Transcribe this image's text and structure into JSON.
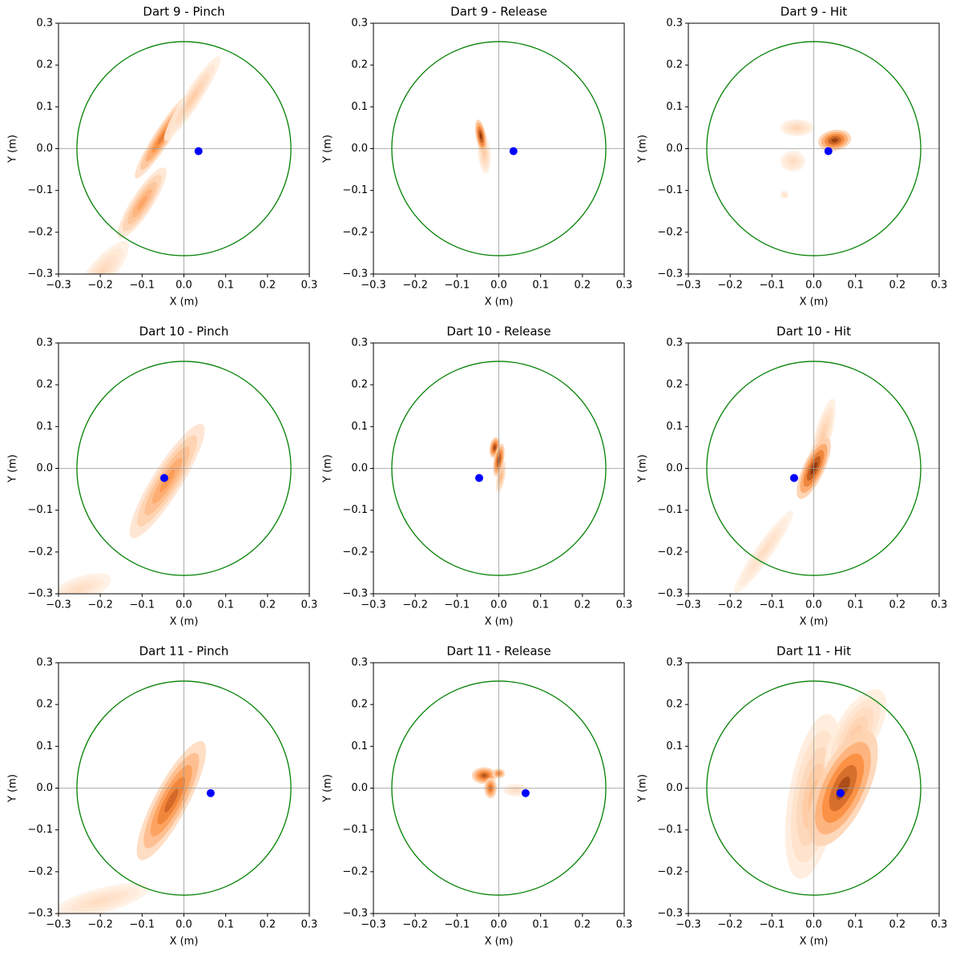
{
  "chart_data": [
    {
      "type": "kde",
      "title": "Dart 9 - Pinch",
      "xlabel": "X (m)",
      "ylabel": "Y (m)",
      "xlim": [
        -0.3,
        0.3
      ],
      "ylim": [
        -0.3,
        0.3
      ],
      "xticks": [
        {
          "value": -0.3,
          "label": "−0.3"
        },
        {
          "value": -0.2,
          "label": "−0.2"
        },
        {
          "value": -0.1,
          "label": "−0.1"
        },
        {
          "value": 0,
          "label": "0.0"
        },
        0.1,
        0.2,
        0.3
      ],
      "yticks": [
        {
          "value": -0.3,
          "label": "−0.3"
        },
        {
          "value": -0.2,
          "label": "−0.2"
        },
        {
          "value": -0.1,
          "label": "−0.1"
        },
        {
          "value": 0,
          "label": "0.0"
        },
        0.1,
        0.2,
        0.3
      ],
      "hline": 0,
      "vline": 0,
      "circle_radius": 0.256,
      "circle_color": "#008000",
      "cmap": [
        "#fff5eb",
        "#fd8d3c",
        "#7f2704"
      ],
      "point": {
        "x": 0.035,
        "y": -0.006,
        "color": "#0000ff"
      },
      "density": [
        {
          "x": -0.05,
          "y": 0.03,
          "sx": 0.12,
          "sy": 0.02,
          "angle": 57,
          "peak": 0.6
        },
        {
          "x": -0.1,
          "y": -0.13,
          "sx": 0.1,
          "sy": 0.025,
          "angle": 57,
          "peak": 0.4
        },
        {
          "x": 0.02,
          "y": 0.12,
          "sx": 0.12,
          "sy": 0.02,
          "angle": 57,
          "peak": 0.2
        },
        {
          "x": -0.2,
          "y": -0.3,
          "sx": 0.1,
          "sy": 0.03,
          "angle": 50,
          "peak": 0.15
        }
      ]
    },
    {
      "type": "kde",
      "title": "Dart 9 - Release",
      "xlabel": "X (m)",
      "ylabel": "Y (m)",
      "xlim": [
        -0.3,
        0.3
      ],
      "ylim": [
        -0.3,
        0.3
      ],
      "xticks": [
        {
          "value": -0.3,
          "label": "−0.3"
        },
        {
          "value": -0.2,
          "label": "−0.2"
        },
        {
          "value": -0.1,
          "label": "−0.1"
        },
        {
          "value": 0,
          "label": "0.0"
        },
        0.1,
        0.2,
        0.3
      ],
      "yticks": [
        {
          "value": -0.3,
          "label": "−0.3"
        },
        {
          "value": -0.2,
          "label": "−0.2"
        },
        {
          "value": -0.1,
          "label": "−0.1"
        },
        {
          "value": 0,
          "label": "0.0"
        },
        0.1,
        0.2,
        0.3
      ],
      "hline": 0,
      "vline": 0,
      "circle_radius": 0.256,
      "circle_color": "#008000",
      "cmap": [
        "#fff5eb",
        "#fd8d3c",
        "#7f2704"
      ],
      "point": {
        "x": 0.035,
        "y": -0.006,
        "color": "#0000ff"
      },
      "density": [
        {
          "x": -0.035,
          "y": -0.01,
          "sx": 0.05,
          "sy": 0.015,
          "angle": 95,
          "peak": 0.2
        },
        {
          "x": -0.043,
          "y": 0.03,
          "sx": 0.04,
          "sy": 0.012,
          "angle": 100,
          "peak": 0.95
        }
      ]
    },
    {
      "type": "kde",
      "title": "Dart 9 - Hit",
      "xlabel": "X (m)",
      "ylabel": "Y (m)",
      "xlim": [
        -0.3,
        0.3
      ],
      "ylim": [
        -0.3,
        0.3
      ],
      "xticks": [
        {
          "value": -0.3,
          "label": "−0.3"
        },
        {
          "value": -0.2,
          "label": "−0.2"
        },
        {
          "value": -0.1,
          "label": "−0.1"
        },
        {
          "value": 0,
          "label": "0.0"
        },
        0.1,
        0.2,
        0.3
      ],
      "yticks": [
        {
          "value": -0.3,
          "label": "−0.3"
        },
        {
          "value": -0.2,
          "label": "−0.2"
        },
        {
          "value": -0.1,
          "label": "−0.1"
        },
        {
          "value": 0,
          "label": "0.0"
        },
        0.1,
        0.2,
        0.3
      ],
      "hline": 0,
      "vline": 0,
      "circle_radius": 0.256,
      "circle_color": "#008000",
      "cmap": [
        "#fff5eb",
        "#fd8d3c",
        "#7f2704"
      ],
      "point": {
        "x": 0.035,
        "y": -0.006,
        "color": "#0000ff"
      },
      "density": [
        {
          "x": -0.04,
          "y": 0.05,
          "sx": 0.04,
          "sy": 0.02,
          "angle": 0,
          "peak": 0.15
        },
        {
          "x": -0.05,
          "y": -0.03,
          "sx": 0.03,
          "sy": 0.025,
          "angle": 0,
          "peak": 0.12
        },
        {
          "x": -0.07,
          "y": -0.11,
          "sx": 0.01,
          "sy": 0.01,
          "angle": 0,
          "peak": 0.1
        },
        {
          "x": 0.05,
          "y": 0.02,
          "sx": 0.04,
          "sy": 0.025,
          "angle": 10,
          "peak": 0.9
        }
      ]
    },
    {
      "type": "kde",
      "title": "Dart 10 - Pinch",
      "xlabel": "X (m)",
      "ylabel": "Y (m)",
      "xlim": [
        -0.3,
        0.3
      ],
      "ylim": [
        -0.3,
        0.3
      ],
      "xticks": [
        {
          "value": -0.3,
          "label": "−0.3"
        },
        {
          "value": -0.2,
          "label": "−0.2"
        },
        {
          "value": -0.1,
          "label": "−0.1"
        },
        {
          "value": 0,
          "label": "0.0"
        },
        0.1,
        0.2,
        0.3
      ],
      "yticks": [
        {
          "value": -0.3,
          "label": "−0.3"
        },
        {
          "value": -0.2,
          "label": "−0.2"
        },
        {
          "value": -0.1,
          "label": "−0.1"
        },
        {
          "value": 0,
          "label": "0.0"
        },
        0.1,
        0.2,
        0.3
      ],
      "hline": 0,
      "vline": 0,
      "circle_radius": 0.256,
      "circle_color": "#008000",
      "cmap": [
        "#fff5eb",
        "#fd8d3c",
        "#7f2704"
      ],
      "point": {
        "x": -0.047,
        "y": -0.023,
        "color": "#0000ff"
      },
      "density": [
        {
          "x": -0.25,
          "y": -0.29,
          "sx": 0.08,
          "sy": 0.03,
          "angle": 20,
          "peak": 0.12
        },
        {
          "x": -0.04,
          "y": -0.03,
          "sx": 0.16,
          "sy": 0.035,
          "angle": 58,
          "peak": 0.45
        }
      ]
    },
    {
      "type": "kde",
      "title": "Dart 10 - Release",
      "xlabel": "X (m)",
      "ylabel": "Y (m)",
      "xlim": [
        -0.3,
        0.3
      ],
      "ylim": [
        -0.3,
        0.3
      ],
      "xticks": [
        {
          "value": -0.3,
          "label": "−0.3"
        },
        {
          "value": -0.2,
          "label": "−0.2"
        },
        {
          "value": -0.1,
          "label": "−0.1"
        },
        {
          "value": 0,
          "label": "0.0"
        },
        0.1,
        0.2,
        0.3
      ],
      "yticks": [
        {
          "value": -0.3,
          "label": "−0.3"
        },
        {
          "value": -0.2,
          "label": "−0.2"
        },
        {
          "value": -0.1,
          "label": "−0.1"
        },
        {
          "value": 0,
          "label": "0.0"
        },
        0.1,
        0.2,
        0.3
      ],
      "hline": 0,
      "vline": 0,
      "circle_radius": 0.256,
      "circle_color": "#008000",
      "cmap": [
        "#fff5eb",
        "#fd8d3c",
        "#7f2704"
      ],
      "point": {
        "x": -0.047,
        "y": -0.023,
        "color": "#0000ff"
      },
      "density": [
        {
          "x": 0.005,
          "y": -0.02,
          "sx": 0.04,
          "sy": 0.01,
          "angle": 80,
          "peak": 0.3
        },
        {
          "x": -0.01,
          "y": 0.05,
          "sx": 0.025,
          "sy": 0.012,
          "angle": 80,
          "peak": 0.9
        },
        {
          "x": 0,
          "y": 0.02,
          "sx": 0.04,
          "sy": 0.012,
          "angle": 80,
          "peak": 0.9
        }
      ]
    },
    {
      "type": "kde",
      "title": "Dart 10 - Hit",
      "xlabel": "X (m)",
      "ylabel": "Y (m)",
      "xlim": [
        -0.3,
        0.3
      ],
      "ylim": [
        -0.3,
        0.3
      ],
      "xticks": [
        {
          "value": -0.3,
          "label": "−0.3"
        },
        {
          "value": -0.2,
          "label": "−0.2"
        },
        {
          "value": -0.1,
          "label": "−0.1"
        },
        {
          "value": 0,
          "label": "0.0"
        },
        0.1,
        0.2,
        0.3
      ],
      "yticks": [
        {
          "value": -0.3,
          "label": "−0.3"
        },
        {
          "value": -0.2,
          "label": "−0.2"
        },
        {
          "value": -0.1,
          "label": "−0.1"
        },
        {
          "value": 0,
          "label": "0.0"
        },
        0.1,
        0.2,
        0.3
      ],
      "hline": 0,
      "vline": 0,
      "circle_radius": 0.256,
      "circle_color": "#008000",
      "cmap": [
        "#fff5eb",
        "#fd8d3c",
        "#7f2704"
      ],
      "point": {
        "x": -0.047,
        "y": -0.023,
        "color": "#0000ff"
      },
      "density": [
        {
          "x": -0.12,
          "y": -0.2,
          "sx": 0.12,
          "sy": 0.02,
          "angle": 55,
          "peak": 0.12
        },
        {
          "x": 0.02,
          "y": 0.07,
          "sx": 0.1,
          "sy": 0.02,
          "angle": 75,
          "peak": 0.2
        },
        {
          "x": 0,
          "y": 0,
          "sx": 0.08,
          "sy": 0.025,
          "angle": 65,
          "peak": 0.95
        }
      ]
    },
    {
      "type": "kde",
      "title": "Dart 11 - Pinch",
      "xlabel": "X (m)",
      "ylabel": "Y (m)",
      "xlim": [
        -0.3,
        0.3
      ],
      "ylim": [
        -0.3,
        0.3
      ],
      "xticks": [
        {
          "value": -0.3,
          "label": "−0.3"
        },
        {
          "value": -0.2,
          "label": "−0.2"
        },
        {
          "value": -0.1,
          "label": "−0.1"
        },
        {
          "value": 0,
          "label": "0.0"
        },
        0.1,
        0.2,
        0.3
      ],
      "yticks": [
        {
          "value": -0.3,
          "label": "−0.3"
        },
        {
          "value": -0.2,
          "label": "−0.2"
        },
        {
          "value": -0.1,
          "label": "−0.1"
        },
        {
          "value": 0,
          "label": "0.0"
        },
        0.1,
        0.2,
        0.3
      ],
      "hline": 0,
      "vline": 0,
      "circle_radius": 0.256,
      "circle_color": "#008000",
      "cmap": [
        "#fff5eb",
        "#fd8d3c",
        "#7f2704"
      ],
      "point": {
        "x": 0.064,
        "y": -0.012,
        "color": "#0000ff"
      },
      "density": [
        {
          "x": -0.2,
          "y": -0.27,
          "sx": 0.12,
          "sy": 0.03,
          "angle": 15,
          "peak": 0.12
        },
        {
          "x": -0.03,
          "y": -0.03,
          "sx": 0.16,
          "sy": 0.04,
          "angle": 62,
          "peak": 0.7
        }
      ]
    },
    {
      "type": "kde",
      "title": "Dart 11 - Release",
      "xlabel": "X (m)",
      "ylabel": "Y (m)",
      "xlim": [
        -0.3,
        0.3
      ],
      "ylim": [
        -0.3,
        0.3
      ],
      "xticks": [
        {
          "value": -0.3,
          "label": "−0.3"
        },
        {
          "value": -0.2,
          "label": "−0.2"
        },
        {
          "value": -0.1,
          "label": "−0.1"
        },
        {
          "value": 0,
          "label": "0.0"
        },
        0.1,
        0.2,
        0.3
      ],
      "yticks": [
        {
          "value": -0.3,
          "label": "−0.3"
        },
        {
          "value": -0.2,
          "label": "−0.2"
        },
        {
          "value": -0.1,
          "label": "−0.1"
        },
        {
          "value": 0,
          "label": "0.0"
        },
        0.1,
        0.2,
        0.3
      ],
      "hline": 0,
      "vline": 0,
      "circle_radius": 0.256,
      "circle_color": "#008000",
      "cmap": [
        "#fff5eb",
        "#fd8d3c",
        "#7f2704"
      ],
      "point": {
        "x": 0.064,
        "y": -0.012,
        "color": "#0000ff"
      },
      "density": [
        {
          "x": 0.04,
          "y": -0.005,
          "sx": 0.03,
          "sy": 0.015,
          "angle": 0,
          "peak": 0.12
        },
        {
          "x": -0.035,
          "y": 0.03,
          "sx": 0.03,
          "sy": 0.02,
          "angle": 0,
          "peak": 0.8
        },
        {
          "x": -0.02,
          "y": 0,
          "sx": 0.025,
          "sy": 0.015,
          "angle": 90,
          "peak": 0.7
        },
        {
          "x": 0,
          "y": 0.035,
          "sx": 0.015,
          "sy": 0.012,
          "angle": 0,
          "peak": 0.6
        }
      ]
    },
    {
      "type": "kde",
      "title": "Dart 11 - Hit",
      "xlabel": "X (m)",
      "ylabel": "Y (m)",
      "xlim": [
        -0.3,
        0.3
      ],
      "ylim": [
        -0.3,
        0.3
      ],
      "xticks": [
        {
          "value": -0.3,
          "label": "−0.3"
        },
        {
          "value": -0.2,
          "label": "−0.2"
        },
        {
          "value": -0.1,
          "label": "−0.1"
        },
        {
          "value": 0,
          "label": "0.0"
        },
        0.1,
        0.2,
        0.3
      ],
      "yticks": [
        {
          "value": -0.3,
          "label": "−0.3"
        },
        {
          "value": -0.2,
          "label": "−0.2"
        },
        {
          "value": -0.1,
          "label": "−0.1"
        },
        {
          "value": 0,
          "label": "0.0"
        },
        0.1,
        0.2,
        0.3
      ],
      "hline": 0,
      "vline": 0,
      "circle_radius": 0.256,
      "circle_color": "#008000",
      "cmap": [
        "#fff5eb",
        "#fd8d3c",
        "#7f2704"
      ],
      "point": {
        "x": 0.064,
        "y": -0.012,
        "color": "#0000ff"
      },
      "density": [
        {
          "x": 0,
          "y": -0.02,
          "sx": 0.2,
          "sy": 0.06,
          "angle": 80,
          "peak": 0.25
        },
        {
          "x": 0.1,
          "y": 0.13,
          "sx": 0.12,
          "sy": 0.05,
          "angle": 60,
          "peak": 0.2
        },
        {
          "x": 0.07,
          "y": 0,
          "sx": 0.15,
          "sy": 0.06,
          "angle": 65,
          "peak": 0.85
        }
      ]
    }
  ]
}
